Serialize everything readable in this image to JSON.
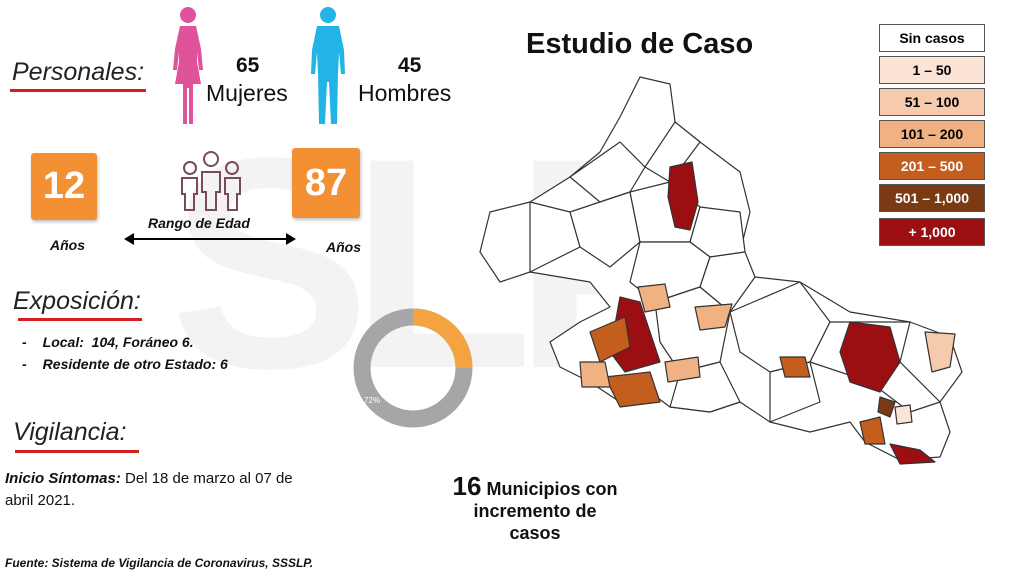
{
  "title": "Estudio de Caso",
  "personales": {
    "heading": "Personales:",
    "women_count": "65",
    "women_label": "Mujeres",
    "men_count": "45",
    "men_label": "Hombres"
  },
  "age": {
    "min": "12",
    "max": "87",
    "min_unit": "Años",
    "max_unit": "Años",
    "range_label": "Rango de Edad"
  },
  "exposicion": {
    "heading": "Exposición:",
    "items": [
      {
        "bullet": "-",
        "text": "Local:  104, Foráneo 6."
      },
      {
        "bullet": "-",
        "text": "Residente de otro Estado: 6"
      }
    ]
  },
  "donut": {
    "label": "72%",
    "percent_gray": 72,
    "colors": {
      "main": "#a6a6a6",
      "accent": "#f4a340"
    }
  },
  "vigilancia": {
    "heading": "Vigilancia:",
    "label_bold": "Inicio Síntomas:",
    "text": " Del 18 de marzo al 07 de abril 2021."
  },
  "municipios": {
    "count": "16",
    "line1": "Municipios con",
    "line2": "incremento de",
    "line3": "casos"
  },
  "legend": [
    {
      "label": "Sin casos",
      "color": "#ffffff",
      "text_color": "#000000"
    },
    {
      "label": "1 – 50",
      "color": "#fbe4d6",
      "text_color": "#000000"
    },
    {
      "label": "51 – 100",
      "color": "#f6caad",
      "text_color": "#000000"
    },
    {
      "label": "101 – 200",
      "color": "#f0b183",
      "text_color": "#000000"
    },
    {
      "label": "201 – 500",
      "color": "#c45e1e",
      "text_color": "#ffffff"
    },
    {
      "label": "501 – 1,000",
      "color": "#7a3a13",
      "text_color": "#ffffff"
    },
    {
      "label": "+ 1,000",
      "color": "#9b0f13",
      "text_color": "#ffffff"
    }
  ],
  "source": "Fuente: Sistema de Vigilancia de Coronavirus, SSSLP."
}
